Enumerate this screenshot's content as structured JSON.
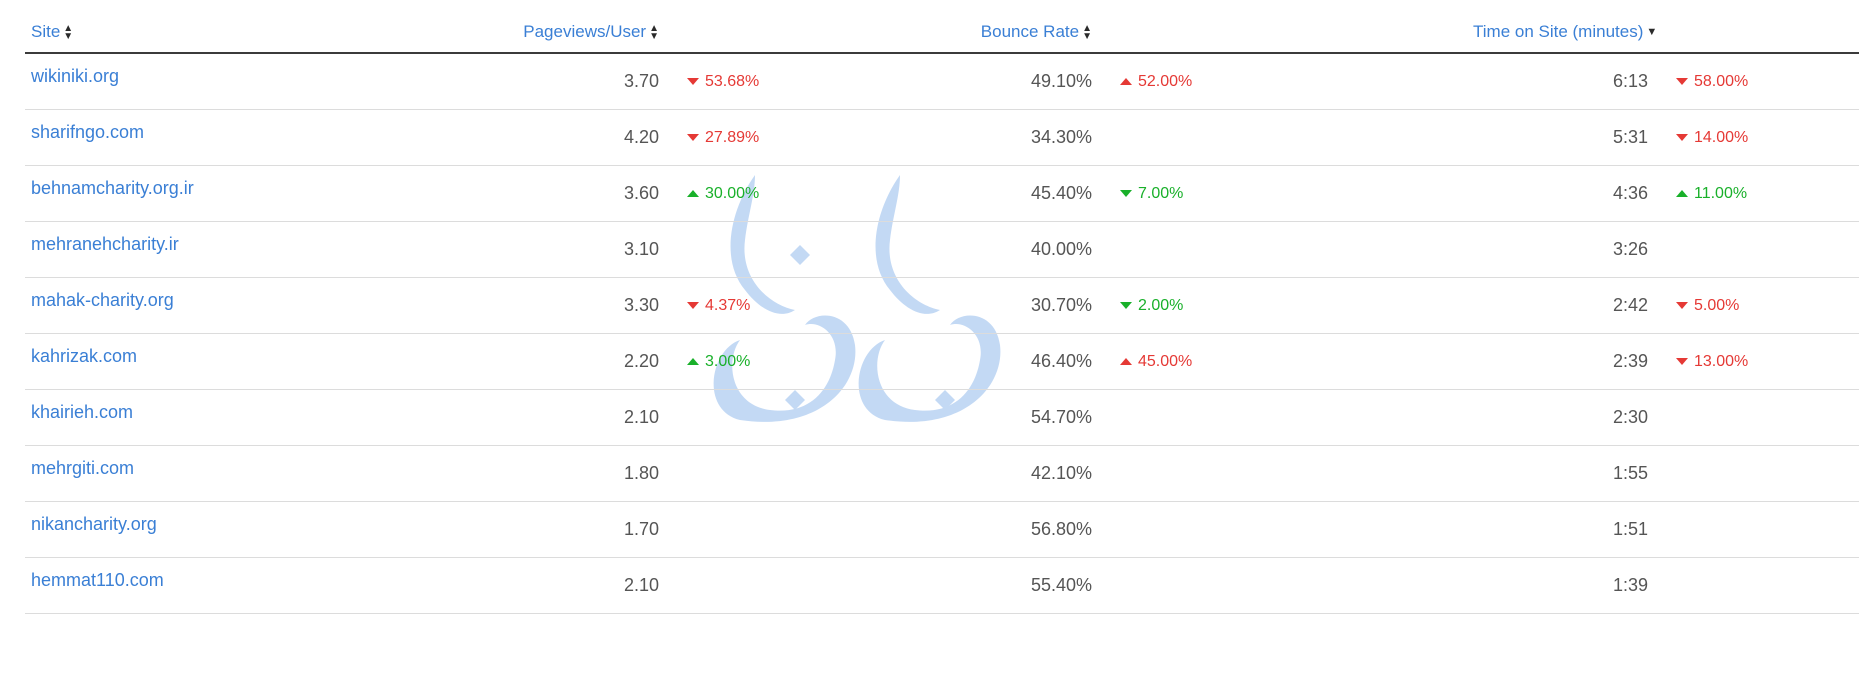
{
  "table": {
    "headers": {
      "site": "Site",
      "pageviews": "Pageviews/User",
      "bounce": "Bounce Rate",
      "time": "Time on Site (minutes)"
    },
    "rows": [
      {
        "site": "wikiniki.org",
        "pv": "3.70",
        "pv_delta": "53.68%",
        "pv_dir": "down",
        "br": "49.10%",
        "br_delta": "52.00%",
        "br_dir": "up-bad",
        "tos": "6:13",
        "tos_delta": "58.00%",
        "tos_dir": "down"
      },
      {
        "site": "sharifngo.com",
        "pv": "4.20",
        "pv_delta": "27.89%",
        "pv_dir": "down",
        "br": "34.30%",
        "br_delta": "",
        "br_dir": "",
        "tos": "5:31",
        "tos_delta": "14.00%",
        "tos_dir": "down"
      },
      {
        "site": "behnamcharity.org.ir",
        "pv": "3.60",
        "pv_delta": "30.00%",
        "pv_dir": "up",
        "br": "45.40%",
        "br_delta": "7.00%",
        "br_dir": "down-good",
        "tos": "4:36",
        "tos_delta": "11.00%",
        "tos_dir": "up"
      },
      {
        "site": "mehranehcharity.ir",
        "pv": "3.10",
        "pv_delta": "",
        "pv_dir": "",
        "br": "40.00%",
        "br_delta": "",
        "br_dir": "",
        "tos": "3:26",
        "tos_delta": "",
        "tos_dir": ""
      },
      {
        "site": "mahak-charity.org",
        "pv": "3.30",
        "pv_delta": "4.37%",
        "pv_dir": "down",
        "br": "30.70%",
        "br_delta": "2.00%",
        "br_dir": "down-good",
        "tos": "2:42",
        "tos_delta": "5.00%",
        "tos_dir": "down"
      },
      {
        "site": "kahrizak.com",
        "pv": "2.20",
        "pv_delta": "3.00%",
        "pv_dir": "up",
        "br": "46.40%",
        "br_delta": "45.00%",
        "br_dir": "up-bad",
        "tos": "2:39",
        "tos_delta": "13.00%",
        "tos_dir": "down"
      },
      {
        "site": "khairieh.com",
        "pv": "2.10",
        "pv_delta": "",
        "pv_dir": "",
        "br": "54.70%",
        "br_delta": "",
        "br_dir": "",
        "tos": "2:30",
        "tos_delta": "",
        "tos_dir": ""
      },
      {
        "site": "mehrgiti.com",
        "pv": "1.80",
        "pv_delta": "",
        "pv_dir": "",
        "br": "42.10%",
        "br_delta": "",
        "br_dir": "",
        "tos": "1:55",
        "tos_delta": "",
        "tos_dir": ""
      },
      {
        "site": "nikancharity.org",
        "pv": "1.70",
        "pv_delta": "",
        "pv_dir": "",
        "br": "56.80%",
        "br_delta": "",
        "br_dir": "",
        "tos": "1:51",
        "tos_delta": "",
        "tos_dir": ""
      },
      {
        "site": "hemmat110.com",
        "pv": "2.10",
        "pv_delta": "",
        "pv_dir": "",
        "br": "55.40%",
        "br_delta": "",
        "br_dir": "",
        "tos": "1:39",
        "tos_delta": "",
        "tos_dir": ""
      }
    ]
  },
  "colors": {
    "link": "#3a7fd5",
    "negative": "#e53935",
    "positive": "#19b02a",
    "watermark": "#b9d3f3"
  },
  "icons": {
    "sort_both": "sort-both-icon",
    "sort_desc": "sort-desc-icon",
    "trend_up": "triangle-up-icon",
    "trend_down": "triangle-down-icon",
    "watermark": "calligraphy-logo-watermark"
  }
}
